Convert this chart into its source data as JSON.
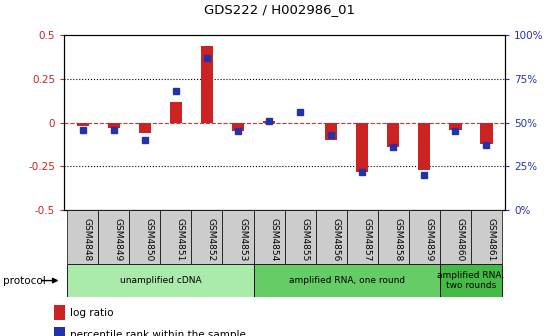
{
  "title": "GDS222 / H002986_01",
  "samples": [
    "GSM4848",
    "GSM4849",
    "GSM4850",
    "GSM4851",
    "GSM4852",
    "GSM4853",
    "GSM4854",
    "GSM4855",
    "GSM4856",
    "GSM4857",
    "GSM4858",
    "GSM4859",
    "GSM4860",
    "GSM4861"
  ],
  "log_ratio": [
    -0.02,
    -0.03,
    -0.06,
    0.12,
    0.44,
    -0.05,
    0.01,
    0.0,
    -0.1,
    -0.28,
    -0.14,
    -0.27,
    -0.04,
    -0.12
  ],
  "percentile": [
    46,
    46,
    40,
    68,
    87,
    45,
    51,
    56,
    43,
    22,
    36,
    20,
    45,
    37
  ],
  "ylim_left": [
    -0.5,
    0.5
  ],
  "ylim_right": [
    0,
    100
  ],
  "yticks_left": [
    -0.5,
    -0.25,
    0.0,
    0.25,
    0.5
  ],
  "ytick_labels_left": [
    "-0.5",
    "-0.25",
    "0",
    "0.25",
    "0.5"
  ],
  "yticks_right": [
    0,
    25,
    50,
    75,
    100
  ],
  "ytick_labels_right": [
    "0%",
    "25%",
    "50%",
    "75%",
    "100%"
  ],
  "hlines_dotted": [
    -0.25,
    0.25
  ],
  "hline_dashed": 0.0,
  "bar_width": 0.4,
  "protocol_groups": [
    {
      "label": "unamplified cDNA",
      "start": 0,
      "end": 5,
      "color": "#AAEAAA"
    },
    {
      "label": "amplified RNA, one round",
      "start": 6,
      "end": 11,
      "color": "#66CC66"
    },
    {
      "label": "amplified RNA,\ntwo rounds",
      "start": 12,
      "end": 13,
      "color": "#44BB44"
    }
  ],
  "protocol_label": "protocol",
  "legend_items": [
    {
      "label": "log ratio",
      "color": "#CC2222"
    },
    {
      "label": "percentile rank within the sample",
      "color": "#2233AA"
    }
  ],
  "red_color": "#CC2222",
  "blue_color": "#2233AA",
  "dashed_color": "#CC3333",
  "grid_color": "#555555",
  "sample_box_color": "#CCCCCC"
}
